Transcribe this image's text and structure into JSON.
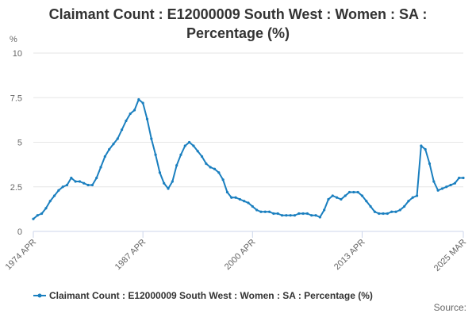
{
  "chart_data": {
    "type": "line",
    "title": "Claimant Count : E12000009 South West : Women : SA : Percentage (%)",
    "y_label": "%",
    "source": "Source:",
    "categories": [
      "1974 APR",
      null,
      null,
      null,
      null,
      null,
      null,
      null,
      null,
      null,
      null,
      null,
      null,
      null,
      null,
      null,
      null,
      null,
      null,
      null,
      null,
      null,
      null,
      null,
      null,
      null,
      "1987 APR",
      null,
      null,
      null,
      null,
      null,
      null,
      null,
      null,
      null,
      null,
      null,
      null,
      null,
      null,
      null,
      null,
      null,
      null,
      null,
      null,
      null,
      null,
      null,
      null,
      null,
      "2000 APR",
      null,
      null,
      null,
      null,
      null,
      null,
      null,
      null,
      null,
      null,
      null,
      null,
      null,
      null,
      null,
      null,
      null,
      null,
      null,
      null,
      null,
      null,
      null,
      null,
      null,
      "2013 APR",
      null,
      null,
      null,
      null,
      null,
      null,
      null,
      null,
      null,
      null,
      null,
      null,
      null,
      null,
      null,
      null,
      null,
      null,
      null,
      null,
      null,
      null,
      null,
      "2025 MAR"
    ],
    "series": [
      {
        "name": "Claimant Count : E12000009 South West : Women : SA : Percentage (%)",
        "color": "#1a7fbf",
        "values": [
          0.7,
          0.9,
          1.0,
          1.3,
          1.7,
          2.0,
          2.3,
          2.5,
          2.6,
          3.0,
          2.8,
          2.8,
          2.7,
          2.6,
          2.6,
          3.0,
          3.6,
          4.2,
          4.6,
          4.9,
          5.2,
          5.7,
          6.2,
          6.6,
          6.8,
          7.4,
          7.2,
          6.3,
          5.2,
          4.3,
          3.3,
          2.7,
          2.4,
          2.8,
          3.7,
          4.3,
          4.8,
          5.0,
          4.8,
          4.5,
          4.2,
          3.8,
          3.6,
          3.5,
          3.3,
          2.9,
          2.2,
          1.9,
          1.9,
          1.8,
          1.7,
          1.6,
          1.4,
          1.2,
          1.1,
          1.1,
          1.1,
          1.0,
          1.0,
          0.9,
          0.9,
          0.9,
          0.9,
          1.0,
          1.0,
          1.0,
          0.9,
          0.9,
          0.8,
          1.2,
          1.8,
          2.0,
          1.9,
          1.8,
          2.0,
          2.2,
          2.2,
          2.2,
          2.0,
          1.7,
          1.4,
          1.1,
          1.0,
          1.0,
          1.0,
          1.1,
          1.1,
          1.2,
          1.4,
          1.7,
          1.9,
          2.0,
          4.8,
          4.6,
          3.8,
          2.8,
          2.3,
          2.4,
          2.5,
          2.6,
          2.7,
          3.0,
          3.0
        ]
      }
    ],
    "ylim": [
      0,
      10
    ],
    "yticks": [
      0,
      2.5,
      5,
      7.5,
      10
    ],
    "grid": true,
    "legend": "bottom"
  }
}
